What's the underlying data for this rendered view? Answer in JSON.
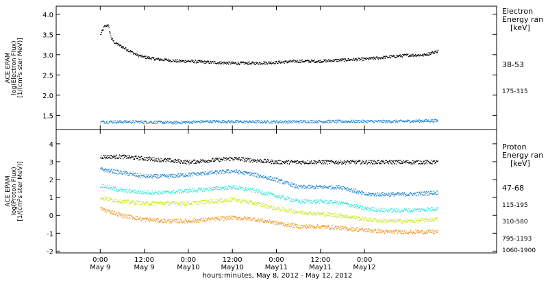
{
  "chart_data": [
    {
      "type": "scatter",
      "panel": "electron",
      "ylabel_lines": [
        "ACE EPAM",
        "log(Electron Flux)",
        "[1/(cm²s ster MeV)]"
      ],
      "ylim": [
        1.15,
        4.2
      ],
      "yticks": [
        "1.5",
        "2.0",
        "2.5",
        "3.0",
        "3.5",
        "4.0"
      ],
      "ytick_values": [
        1.5,
        2.0,
        2.5,
        3.0,
        3.5,
        4.0
      ],
      "legend_title": [
        "Electron",
        "Energy ran",
        "[keV]"
      ],
      "series": [
        {
          "name": "38-53",
          "color": "#000000",
          "x": [
            0,
            1,
            2,
            3,
            4,
            5,
            6,
            7,
            8,
            9,
            10,
            12,
            15,
            18,
            21,
            24,
            30,
            36,
            42,
            48,
            54,
            60,
            66,
            72,
            78,
            84,
            88,
            92
          ],
          "y": [
            3.5,
            3.7,
            3.75,
            3.4,
            3.3,
            3.25,
            3.2,
            3.15,
            3.1,
            3.05,
            3.0,
            2.95,
            2.9,
            2.88,
            2.85,
            2.85,
            2.82,
            2.8,
            2.8,
            2.82,
            2.85,
            2.85,
            2.88,
            2.9,
            2.95,
            3.0,
            3.0,
            3.1
          ]
        },
        {
          "name": "175-315",
          "color": "#1c82d2",
          "x": [
            0,
            10,
            20,
            30,
            40,
            50,
            60,
            70,
            80,
            92
          ],
          "y": [
            1.35,
            1.35,
            1.33,
            1.36,
            1.35,
            1.35,
            1.36,
            1.36,
            1.36,
            1.38
          ]
        }
      ]
    },
    {
      "type": "scatter",
      "panel": "proton",
      "ylabel_lines": [
        "ACE EPAM",
        "log(Proton Flux)",
        "[1/(cm²s ster MeV)]"
      ],
      "ylim": [
        -2.1,
        4.8
      ],
      "yticks": [
        "-2",
        "-1",
        "0",
        "1",
        "2",
        "3",
        "4"
      ],
      "ytick_values": [
        -2,
        -1,
        0,
        1,
        2,
        3,
        4
      ],
      "legend_title": [
        "Proton",
        "Energy ran",
        "[keV]"
      ],
      "series": [
        {
          "name": "47-68",
          "color": "#000000",
          "x": [
            0,
            6,
            12,
            18,
            24,
            30,
            36,
            42,
            48,
            54,
            60,
            66,
            72,
            78,
            84,
            92
          ],
          "y": [
            3.3,
            3.3,
            3.2,
            3.1,
            3.0,
            3.1,
            3.2,
            3.1,
            3.0,
            3.0,
            3.0,
            3.0,
            3.0,
            3.0,
            3.0,
            3.0
          ]
        },
        {
          "name": "115-195",
          "color": "#1c82d2",
          "x": [
            0,
            6,
            12,
            18,
            24,
            30,
            36,
            42,
            48,
            54,
            60,
            66,
            72,
            78,
            84,
            92
          ],
          "y": [
            2.6,
            2.4,
            2.2,
            2.2,
            2.3,
            2.4,
            2.5,
            2.3,
            2.0,
            1.6,
            1.6,
            1.6,
            1.2,
            1.2,
            1.2,
            1.3
          ]
        },
        {
          "name": "310-580",
          "color": "#33e6d9",
          "x": [
            0,
            6,
            12,
            18,
            24,
            30,
            36,
            42,
            48,
            54,
            60,
            66,
            72,
            78,
            84,
            92
          ],
          "y": [
            1.7,
            1.4,
            1.3,
            1.3,
            1.4,
            1.5,
            1.6,
            1.4,
            1.1,
            0.8,
            0.8,
            0.7,
            0.4,
            0.3,
            0.3,
            0.4
          ]
        },
        {
          "name": "795-1193",
          "color": "#c8e81e",
          "x": [
            0,
            6,
            12,
            18,
            24,
            30,
            36,
            42,
            48,
            54,
            60,
            66,
            72,
            78,
            84,
            92
          ],
          "y": [
            1.0,
            0.8,
            0.7,
            0.7,
            0.7,
            0.8,
            0.9,
            0.7,
            0.4,
            0.2,
            0.1,
            0.0,
            -0.2,
            -0.3,
            -0.3,
            -0.2
          ]
        },
        {
          "name": "1060-1900",
          "color": "#f09622",
          "x": [
            0,
            6,
            12,
            18,
            24,
            30,
            36,
            42,
            48,
            54,
            60,
            66,
            72,
            78,
            84,
            92
          ],
          "y": [
            0.4,
            0.0,
            -0.2,
            -0.3,
            -0.3,
            -0.2,
            -0.1,
            -0.2,
            -0.4,
            -0.6,
            -0.6,
            -0.7,
            -0.8,
            -0.9,
            -0.9,
            -0.9
          ]
        }
      ]
    }
  ],
  "x_axis": {
    "range_hours": [
      -12,
      108
    ],
    "ticks": [
      {
        "t": 0,
        "time": "0:00",
        "date": "May 9"
      },
      {
        "t": 12,
        "time": "12:00",
        "date": "May 9"
      },
      {
        "t": 24,
        "time": "0:00",
        "date": "May10"
      },
      {
        "t": 36,
        "time": "12:00",
        "date": "May10"
      },
      {
        "t": 48,
        "time": "0:00",
        "date": "May11"
      },
      {
        "t": 60,
        "time": "12:00",
        "date": "May11"
      },
      {
        "t": 72,
        "time": "0:00",
        "date": "May12"
      }
    ],
    "xlabel": "hours:minutes, May  8, 2012 - May 12, 2012"
  }
}
